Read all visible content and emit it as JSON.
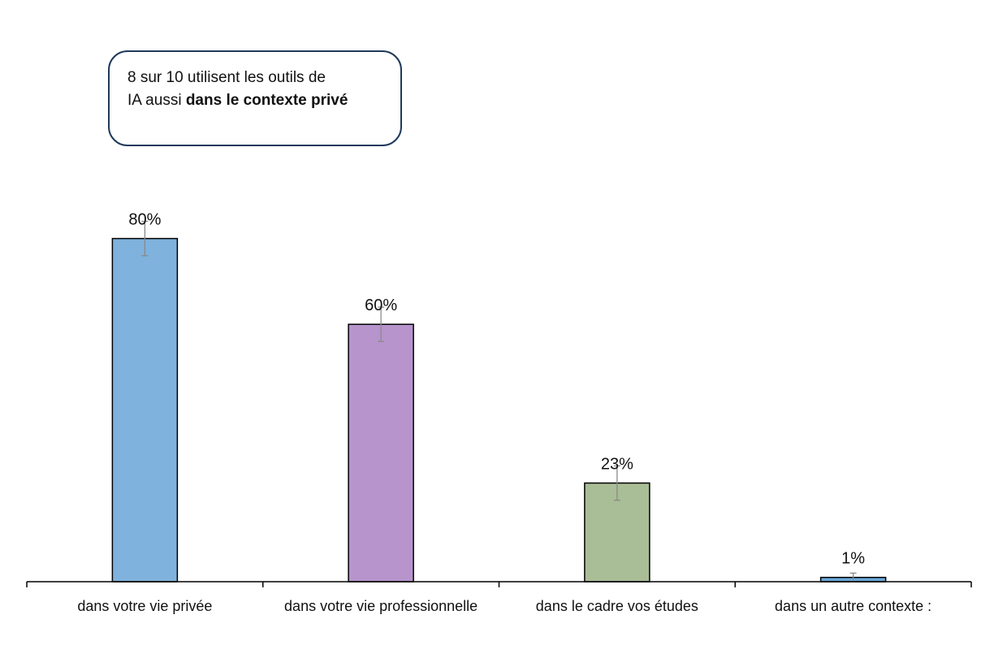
{
  "callout": {
    "line1": "8 sur 10 utilisent les outils de",
    "line2_prefix": "IA aussi ",
    "line2_bold": "dans le contexte privé"
  },
  "chart_data": {
    "type": "bar",
    "categories": [
      "dans votre vie privée",
      "dans votre vie professionnelle",
      "dans le cadre vos études",
      "dans un autre contexte :"
    ],
    "values": [
      80,
      60,
      23,
      1
    ],
    "data_labels": [
      "80%",
      "60%",
      "23%",
      "1%"
    ],
    "error_bars": [
      4,
      4,
      4,
      1
    ],
    "colors": [
      "#7fb2dc",
      "#b794cc",
      "#a9bd96",
      "#6aa7d8"
    ],
    "ylim": [
      0,
      100
    ],
    "title": "",
    "xlabel": "",
    "ylabel": "",
    "grid": false,
    "legend": "none"
  }
}
